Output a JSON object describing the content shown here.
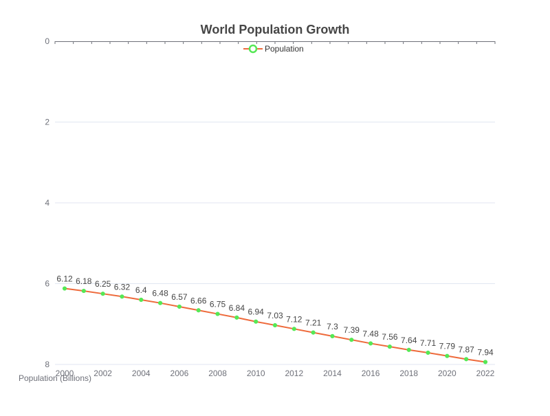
{
  "chart_data": {
    "type": "line",
    "title": "World Population Growth",
    "ylabel": "Population (Billions)",
    "xlabel": "",
    "y_inverted": true,
    "ylim": [
      0,
      8
    ],
    "y_ticks": [
      0,
      2,
      4,
      6,
      8
    ],
    "x_ticks": [
      2000,
      2002,
      2004,
      2006,
      2008,
      2010,
      2012,
      2014,
      2016,
      2018,
      2020,
      2022
    ],
    "legend": {
      "position": "top-center",
      "entries": [
        "Population"
      ]
    },
    "grid": true,
    "colors": {
      "line": "#ee6a3b",
      "marker": "#55e855",
      "grid": "#e0e6f1",
      "axis": "#6e7079"
    },
    "categories": [
      2000,
      2001,
      2002,
      2003,
      2004,
      2005,
      2006,
      2007,
      2008,
      2009,
      2010,
      2011,
      2012,
      2013,
      2014,
      2015,
      2016,
      2017,
      2018,
      2019,
      2020,
      2021,
      2022
    ],
    "series": [
      {
        "name": "Population",
        "values": [
          6.12,
          6.18,
          6.25,
          6.32,
          6.4,
          6.48,
          6.57,
          6.66,
          6.75,
          6.84,
          6.94,
          7.03,
          7.12,
          7.21,
          7.3,
          7.39,
          7.48,
          7.56,
          7.64,
          7.71,
          7.79,
          7.87,
          7.94
        ]
      }
    ]
  }
}
